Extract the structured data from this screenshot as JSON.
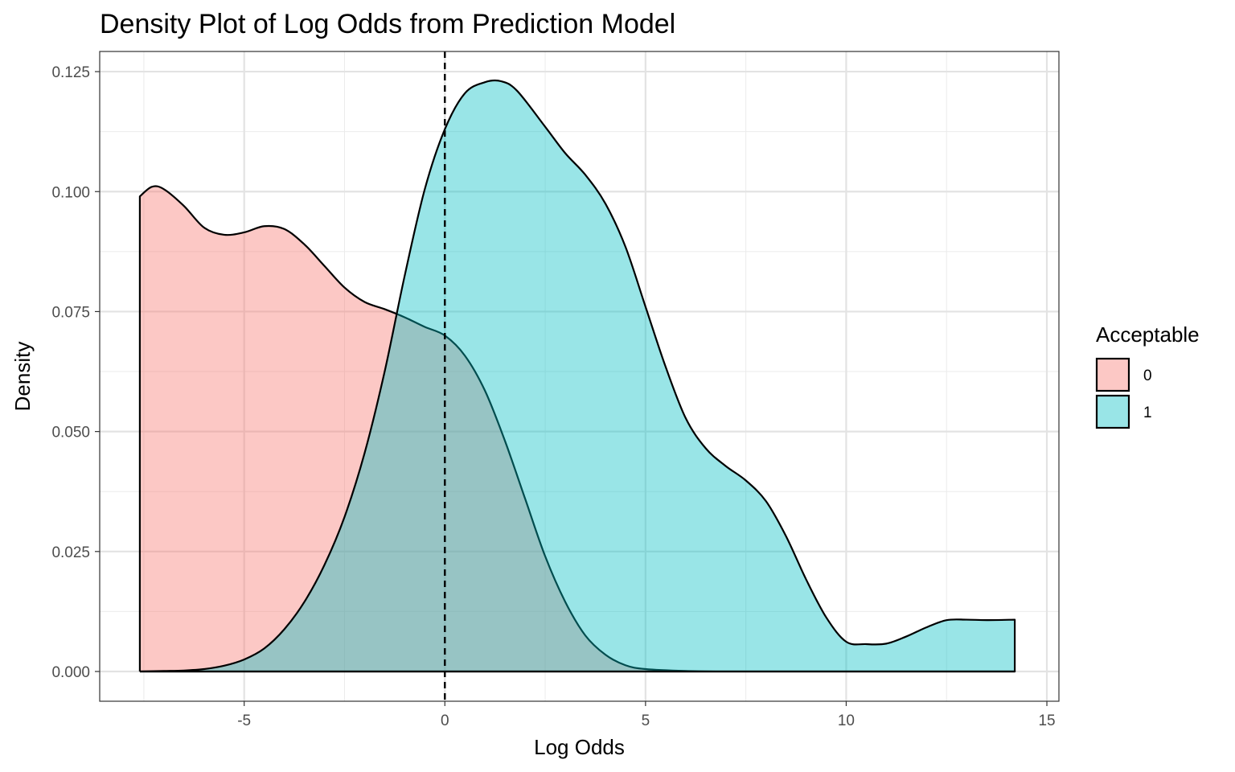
{
  "chart_data": {
    "type": "area",
    "title": "Density Plot of Log Odds from Prediction Model",
    "xlabel": "Log Odds",
    "ylabel": "Density",
    "xlim": [
      -8.6,
      15.3
    ],
    "ylim": [
      -0.0062,
      0.1292
    ],
    "x_ticks": [
      -5,
      0,
      5,
      10,
      15
    ],
    "x_tick_labels": [
      "-5",
      "0",
      "5",
      "10",
      "15"
    ],
    "y_ticks": [
      0,
      0.025,
      0.05,
      0.075,
      0.1,
      0.125
    ],
    "y_tick_labels": [
      "0.000",
      "0.025",
      "0.050",
      "0.075",
      "0.100",
      "0.125"
    ],
    "grid": true,
    "vline": {
      "x": 0,
      "style": "dashed"
    },
    "legend": {
      "title": "Acceptable",
      "position": "right",
      "entries": [
        {
          "label": "0",
          "color": "#F8766D"
        },
        {
          "label": "1",
          "color": "#00BFC4"
        }
      ]
    },
    "fill_alpha": 0.4,
    "series": [
      {
        "name": "0",
        "color": "#F8766D",
        "x": [
          -7.6,
          -7.3,
          -7.0,
          -6.5,
          -6.0,
          -5.5,
          -5.0,
          -4.5,
          -4.0,
          -3.5,
          -3.0,
          -2.5,
          -2.0,
          -1.5,
          -1.0,
          -0.5,
          0.0,
          0.5,
          1.0,
          1.5,
          2.0,
          2.5,
          3.0,
          3.5,
          4.0,
          4.5,
          5.0,
          6.0,
          7.0,
          8.0,
          9.0,
          10.0,
          11.0,
          12.0,
          13.0,
          14.2
        ],
        "y": [
          0.099,
          0.101,
          0.1005,
          0.097,
          0.0925,
          0.091,
          0.0915,
          0.0928,
          0.0922,
          0.089,
          0.0845,
          0.08,
          0.077,
          0.0755,
          0.0738,
          0.0718,
          0.07,
          0.0658,
          0.0585,
          0.048,
          0.036,
          0.024,
          0.0145,
          0.0075,
          0.0035,
          0.0013,
          0.0005,
          0.0001,
          0.0,
          0.0,
          0.0,
          0.0,
          0.0,
          0.0,
          0.0,
          0.0
        ]
      },
      {
        "name": "1",
        "color": "#00BFC4",
        "x": [
          -7.6,
          -7.0,
          -6.5,
          -6.0,
          -5.5,
          -5.0,
          -4.5,
          -4.0,
          -3.5,
          -3.0,
          -2.5,
          -2.0,
          -1.5,
          -1.0,
          -0.5,
          0.0,
          0.5,
          1.0,
          1.4,
          1.8,
          2.5,
          3.0,
          3.5,
          4.0,
          4.5,
          5.0,
          5.5,
          6.0,
          6.5,
          7.0,
          7.5,
          8.0,
          8.5,
          9.0,
          9.5,
          10.0,
          10.5,
          11.0,
          11.5,
          12.0,
          12.5,
          13.0,
          13.5,
          14.2
        ],
        "y": [
          0.0,
          0.0001,
          0.0002,
          0.0005,
          0.0012,
          0.0025,
          0.0048,
          0.0088,
          0.0145,
          0.0222,
          0.0322,
          0.0455,
          0.0625,
          0.0825,
          0.1005,
          0.113,
          0.1205,
          0.1228,
          0.123,
          0.121,
          0.1135,
          0.108,
          0.1035,
          0.0975,
          0.0885,
          0.076,
          0.0635,
          0.0528,
          0.0465,
          0.0428,
          0.0398,
          0.0355,
          0.0282,
          0.0192,
          0.0113,
          0.0062,
          0.0057,
          0.0058,
          0.0073,
          0.0092,
          0.0107,
          0.0108,
          0.0107,
          0.0108
        ]
      }
    ]
  }
}
